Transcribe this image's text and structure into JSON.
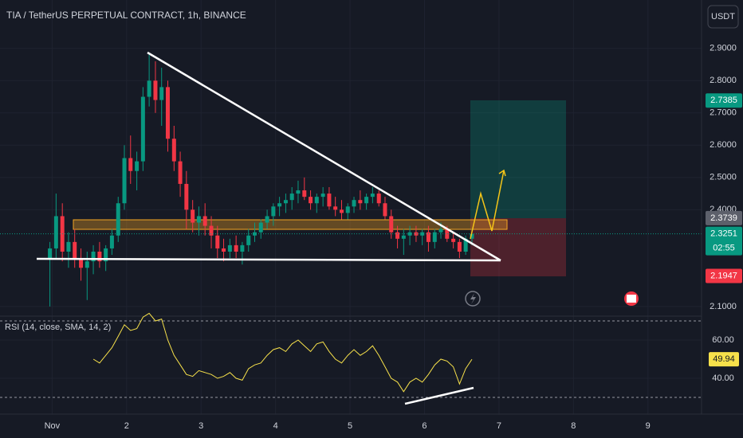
{
  "chart_data": {
    "type": "candlestick",
    "title": "TIA / TetherUS PERPETUAL CONTRACT, 1h, BINANCE",
    "currency": "USDT",
    "up_color": "#089981",
    "down_color": "#f23645",
    "xlim": [
      0.3,
      9.72
    ],
    "xticks": [
      {
        "value": 1,
        "label": "Nov"
      },
      2,
      3,
      4,
      5,
      6,
      7,
      8,
      9
    ],
    "ylim": [
      2.075,
      3.05
    ],
    "yticks": [
      {
        "value": 2.1,
        "label": "2.1000"
      },
      {
        "value": 2.4,
        "label": "2.4000"
      },
      {
        "value": 2.5,
        "label": "2.5000"
      },
      {
        "value": 2.6,
        "label": "2.6000"
      },
      {
        "value": 2.7,
        "label": "2.7000"
      },
      {
        "value": 2.8,
        "label": "2.8000"
      },
      {
        "value": 2.9,
        "label": "2.9000"
      }
    ],
    "x": [
      0.97,
      1.053,
      1.137,
      1.22,
      1.303,
      1.387,
      1.47,
      1.553,
      1.637,
      1.72,
      1.803,
      1.887,
      1.97,
      2.053,
      2.137,
      2.22,
      2.303,
      2.387,
      2.47,
      2.553,
      2.637,
      2.72,
      2.803,
      2.887,
      2.97,
      3.053,
      3.137,
      3.22,
      3.303,
      3.387,
      3.47,
      3.553,
      3.637,
      3.72,
      3.803,
      3.887,
      3.97,
      4.053,
      4.137,
      4.22,
      4.303,
      4.387,
      4.47,
      4.553,
      4.637,
      4.72,
      4.803,
      4.887,
      4.97,
      5.053,
      5.137,
      5.22,
      5.303,
      5.387,
      5.47,
      5.553,
      5.637,
      5.72,
      5.803,
      5.887,
      5.97,
      6.053,
      6.137,
      6.22,
      6.303,
      6.387,
      6.47,
      6.553,
      6.637
    ],
    "ohlc": [
      [
        2.25,
        2.3,
        2.1,
        2.28
      ],
      [
        2.28,
        2.45,
        2.25,
        2.38
      ],
      [
        2.38,
        2.42,
        2.24,
        2.27
      ],
      [
        2.27,
        2.33,
        2.22,
        2.3
      ],
      [
        2.3,
        2.34,
        2.22,
        2.25
      ],
      [
        2.25,
        2.28,
        2.18,
        2.22
      ],
      [
        2.22,
        2.27,
        2.12,
        2.24
      ],
      [
        2.24,
        2.29,
        2.2,
        2.27
      ],
      [
        2.27,
        2.3,
        2.22,
        2.24
      ],
      [
        2.24,
        2.29,
        2.21,
        2.28
      ],
      [
        2.28,
        2.34,
        2.26,
        2.32
      ],
      [
        2.32,
        2.44,
        2.3,
        2.42
      ],
      [
        2.42,
        2.6,
        2.4,
        2.56
      ],
      [
        2.56,
        2.63,
        2.48,
        2.52
      ],
      [
        2.52,
        2.58,
        2.46,
        2.55
      ],
      [
        2.55,
        2.78,
        2.52,
        2.75
      ],
      [
        2.75,
        2.88,
        2.72,
        2.8
      ],
      [
        2.8,
        2.86,
        2.7,
        2.74
      ],
      [
        2.74,
        2.84,
        2.66,
        2.78
      ],
      [
        2.78,
        2.8,
        2.58,
        2.62
      ],
      [
        2.62,
        2.66,
        2.52,
        2.55
      ],
      [
        2.55,
        2.58,
        2.44,
        2.48
      ],
      [
        2.48,
        2.52,
        2.34,
        2.4
      ],
      [
        2.4,
        2.43,
        2.33,
        2.36
      ],
      [
        2.36,
        2.41,
        2.32,
        2.38
      ],
      [
        2.38,
        2.42,
        2.32,
        2.35
      ],
      [
        2.35,
        2.38,
        2.28,
        2.32
      ],
      [
        2.32,
        2.35,
        2.25,
        2.28
      ],
      [
        2.28,
        2.31,
        2.24,
        2.27
      ],
      [
        2.27,
        2.31,
        2.25,
        2.29
      ],
      [
        2.29,
        2.32,
        2.25,
        2.27
      ],
      [
        2.27,
        2.3,
        2.23,
        2.29
      ],
      [
        2.29,
        2.34,
        2.27,
        2.32
      ],
      [
        2.32,
        2.36,
        2.3,
        2.33
      ],
      [
        2.33,
        2.37,
        2.31,
        2.36
      ],
      [
        2.36,
        2.4,
        2.34,
        2.38
      ],
      [
        2.38,
        2.42,
        2.35,
        2.41
      ],
      [
        2.41,
        2.44,
        2.38,
        2.42
      ],
      [
        2.42,
        2.45,
        2.39,
        2.43
      ],
      [
        2.43,
        2.47,
        2.4,
        2.45
      ],
      [
        2.45,
        2.49,
        2.42,
        2.46
      ],
      [
        2.46,
        2.5,
        2.43,
        2.44
      ],
      [
        2.44,
        2.46,
        2.4,
        2.42
      ],
      [
        2.42,
        2.45,
        2.39,
        2.44
      ],
      [
        2.44,
        2.47,
        2.41,
        2.45
      ],
      [
        2.45,
        2.47,
        2.4,
        2.41
      ],
      [
        2.41,
        2.44,
        2.38,
        2.4
      ],
      [
        2.4,
        2.43,
        2.37,
        2.39
      ],
      [
        2.39,
        2.42,
        2.37,
        2.41
      ],
      [
        2.41,
        2.44,
        2.39,
        2.43
      ],
      [
        2.43,
        2.46,
        2.4,
        2.42
      ],
      [
        2.42,
        2.45,
        2.4,
        2.44
      ],
      [
        2.44,
        2.47,
        2.42,
        2.45
      ],
      [
        2.45,
        2.46,
        2.41,
        2.42
      ],
      [
        2.42,
        2.44,
        2.37,
        2.38
      ],
      [
        2.38,
        2.4,
        2.31,
        2.33
      ],
      [
        2.33,
        2.35,
        2.28,
        2.31
      ],
      [
        2.31,
        2.34,
        2.26,
        2.32
      ],
      [
        2.32,
        2.35,
        2.29,
        2.33
      ],
      [
        2.33,
        2.35,
        2.3,
        2.32
      ],
      [
        2.32,
        2.34,
        2.29,
        2.33
      ],
      [
        2.33,
        2.35,
        2.27,
        2.3
      ],
      [
        2.3,
        2.34,
        2.28,
        2.33
      ],
      [
        2.33,
        2.36,
        2.31,
        2.34
      ],
      [
        2.34,
        2.35,
        2.3,
        2.31
      ],
      [
        2.31,
        2.33,
        2.28,
        2.3
      ],
      [
        2.3,
        2.31,
        2.25,
        2.27
      ],
      [
        2.27,
        2.32,
        2.26,
        2.31
      ],
      [
        2.31,
        2.34,
        2.29,
        2.3251
      ]
    ],
    "price_labels": [
      {
        "value": 2.7385,
        "label": "2.7385",
        "color": "#089981"
      },
      {
        "value": 2.3739,
        "label": "2.3739",
        "color": "#5d606b"
      },
      {
        "value": 2.3251,
        "label": "2.3251",
        "countdown": "02:55",
        "color": "#089981"
      },
      {
        "value": 2.1947,
        "label": "2.1947",
        "color": "#f23645"
      }
    ],
    "rsi": {
      "name": "RSI (14, close, SMA, 14, 2)",
      "color": "#f7e14b",
      "ylim": [
        21.25,
        71.25
      ],
      "yticks": [
        {
          "value": 60,
          "label": "60.00"
        },
        {
          "value": 40,
          "label": "40.00"
        }
      ],
      "levels": [
        70,
        30
      ],
      "last_label": {
        "value": 49.94,
        "label": "49.94"
      },
      "values": [
        null,
        null,
        null,
        null,
        null,
        null,
        null,
        50,
        48,
        52,
        56,
        62,
        68,
        65,
        66,
        72,
        74,
        70,
        71,
        60,
        52,
        47,
        42,
        41,
        44,
        43,
        42,
        40,
        41,
        43,
        40,
        39,
        45,
        47,
        48,
        52,
        55,
        56,
        54,
        58,
        60,
        57,
        54,
        58,
        59,
        54,
        50,
        48,
        52,
        55,
        52,
        54,
        57,
        52,
        46,
        40,
        38,
        33,
        38,
        40,
        38,
        42,
        47,
        50,
        49,
        46,
        37,
        45,
        49.94
      ]
    }
  }
}
